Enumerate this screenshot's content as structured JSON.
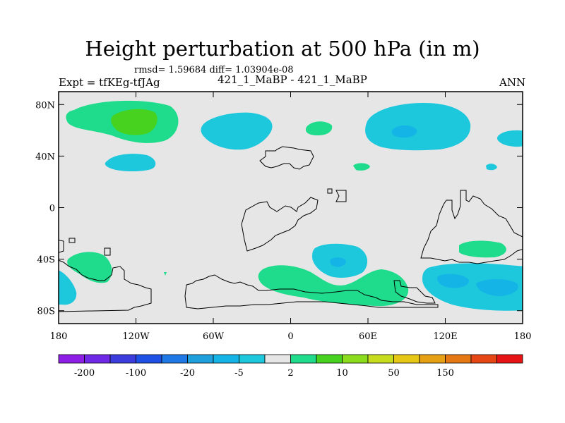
{
  "title": "Height perturbation at 500 hPa (in m)",
  "stats": "rmsd= 1.59684  diff= 1.03904e-08",
  "left_label": "Expt = tfKEg-tfJAg",
  "subtitle": "421_1_MaBP - 421_1_MaBP",
  "right_label": "ANN",
  "map": {
    "projection": "cylindrical-equidistant",
    "lon_range": [
      -180,
      180
    ],
    "lat_range": [
      -90,
      90
    ],
    "background_color": "#e6e6e6",
    "lat_ticks": [
      {
        "lat": 80,
        "label": "80N"
      },
      {
        "lat": 40,
        "label": "40N"
      },
      {
        "lat": 0,
        "label": "0"
      },
      {
        "lat": -40,
        "label": "40S"
      },
      {
        "lat": -80,
        "label": "80S"
      }
    ],
    "lon_ticks": [
      {
        "lon": -180,
        "label": "180"
      },
      {
        "lon": -120,
        "label": "120W"
      },
      {
        "lon": -60,
        "label": "60W"
      },
      {
        "lon": 0,
        "label": "0"
      },
      {
        "lon": 60,
        "label": "60E"
      },
      {
        "lon": 120,
        "label": "120E"
      },
      {
        "lon": 180,
        "label": "180"
      }
    ]
  },
  "colorbar": {
    "colors": [
      "#8c1ee6",
      "#6e28e6",
      "#3c3cdc",
      "#1e50e6",
      "#1e78e6",
      "#1ea0dc",
      "#14b4e6",
      "#1ec8dc",
      "#e6e6e6",
      "#1edc8c",
      "#46d21e",
      "#8cdc1e",
      "#c8dc1e",
      "#e6c814",
      "#e6a014",
      "#e67814",
      "#e64614",
      "#e61414"
    ],
    "labels": [
      {
        "after_box": 1,
        "text": "-200"
      },
      {
        "after_box": 3,
        "text": "-100"
      },
      {
        "after_box": 5,
        "text": "-20"
      },
      {
        "after_box": 7,
        "text": "-5"
      },
      {
        "after_box": 9,
        "text": "2"
      },
      {
        "after_box": 11,
        "text": "10"
      },
      {
        "after_box": 13,
        "text": "50"
      },
      {
        "after_box": 15,
        "text": "150"
      }
    ]
  }
}
